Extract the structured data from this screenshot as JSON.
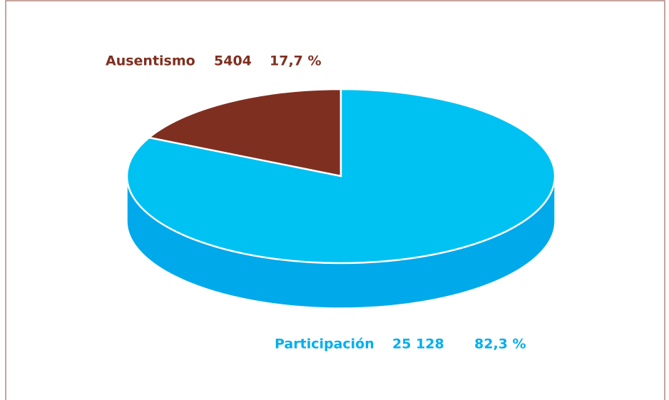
{
  "chart_data": {
    "type": "pie3d",
    "categories": [
      "Ausentismo",
      "Participación"
    ],
    "values": [
      17.7,
      82.3
    ],
    "value_labels": [
      "17,7 %",
      "82,3 %"
    ],
    "counts": [
      5404,
      25128
    ],
    "count_labels": [
      "5404",
      "25 128"
    ],
    "colors": [
      "#7f2f20",
      "#00c2f2"
    ],
    "side_colors": [
      "#5e2318",
      "#00a9ea"
    ],
    "label_colors": [
      "#7f2f20",
      "#00aeef"
    ]
  }
}
